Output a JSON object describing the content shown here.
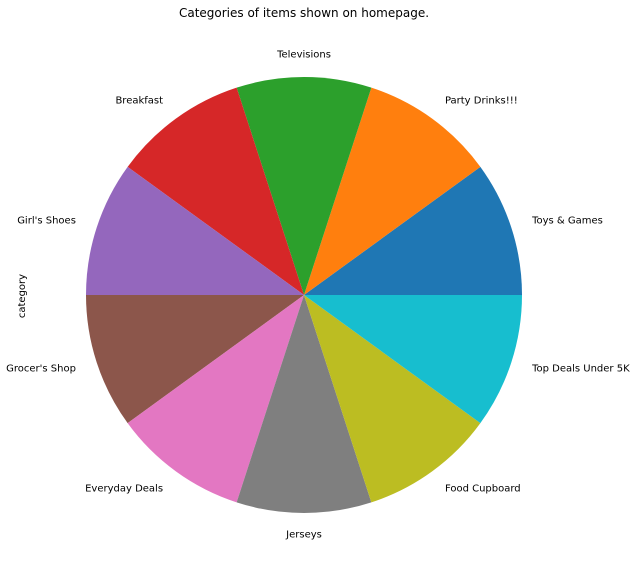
{
  "chart_data": {
    "type": "pie",
    "title": "Categories of items shown on homepage.",
    "ylabel": "category",
    "start_angle_deg": 0,
    "direction": "counterclockwise",
    "slices": [
      {
        "label": "Toys & Games",
        "value": 1,
        "color": "#1f77b4"
      },
      {
        "label": "Party Drinks!!!",
        "value": 1,
        "color": "#ff7f0e"
      },
      {
        "label": "Televisions",
        "value": 1,
        "color": "#2ca02c"
      },
      {
        "label": "Breakfast",
        "value": 1,
        "color": "#d62728"
      },
      {
        "label": "Girl's Shoes",
        "value": 1,
        "color": "#9467bd"
      },
      {
        "label": "Grocer's Shop",
        "value": 1,
        "color": "#8c564b"
      },
      {
        "label": "Everyday Deals",
        "value": 1,
        "color": "#e377c2"
      },
      {
        "label": "Jerseys",
        "value": 1,
        "color": "#7f7f7f"
      },
      {
        "label": "Food Cupboard",
        "value": 1,
        "color": "#bcbd22"
      },
      {
        "label": "Top Deals Under 5K",
        "value": 1,
        "color": "#17becf"
      }
    ]
  }
}
